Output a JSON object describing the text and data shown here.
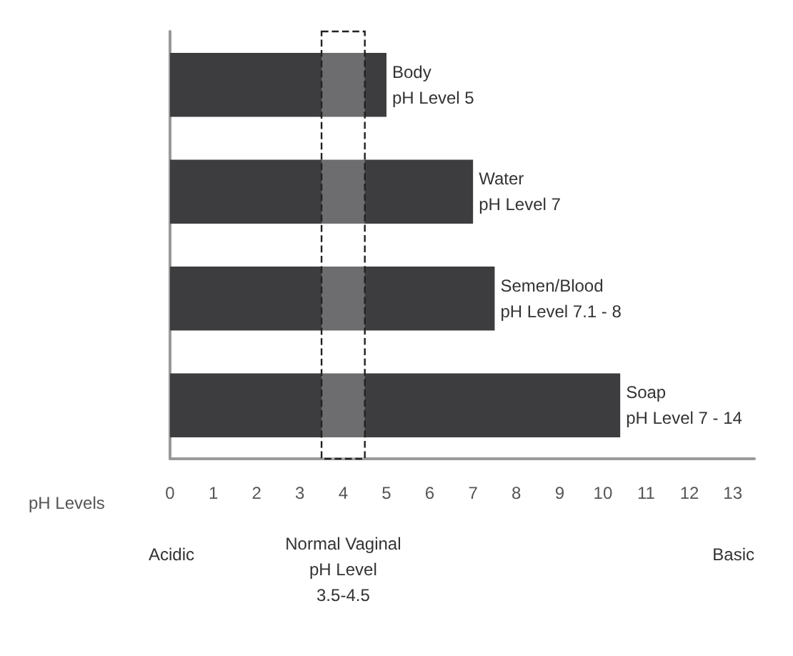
{
  "chart_data": {
    "type": "bar",
    "orientation": "horizontal",
    "categories": [
      "Body",
      "Water",
      "Semen/Blood",
      "Soap"
    ],
    "values": [
      5,
      7,
      7.5,
      10.4
    ],
    "value_labels": [
      "pH Level 5",
      "pH Level 7",
      "pH Level 7.1 - 8",
      "pH Level 7 - 14"
    ],
    "color": "#3d3d3f",
    "xlabel": "pH Levels",
    "xlim": [
      0,
      13.5
    ],
    "xticks": [
      0,
      1,
      2,
      3,
      4,
      5,
      6,
      7,
      8,
      9,
      10,
      11,
      12,
      13
    ],
    "bands": [
      {
        "axis": "x",
        "from": 3.5,
        "to": 4.5,
        "label": "Normal Vaginal\npH Level\n3.5-4.5"
      }
    ],
    "annotations": [
      "Acidic",
      "Basic"
    ],
    "grid": false
  }
}
